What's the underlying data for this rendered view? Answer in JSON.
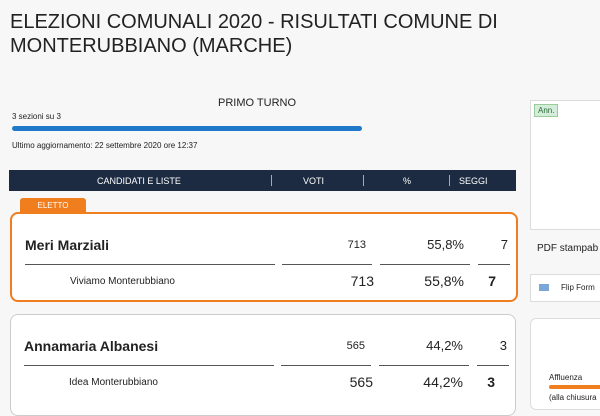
{
  "header": {
    "title": "ELEZIONI COMUNALI 2020 - RISULTATI COMUNE DI MONTERUBBIANO (MARCHE)"
  },
  "round": {
    "title": "PRIMO TURNO",
    "sections": "3 sezioni su 3",
    "updated": "Ultimo aggiornamento: 22 settembre 2020 ore 12:37"
  },
  "table": {
    "columns": [
      "CANDIDATI E LISTE",
      "VOTI",
      "%",
      "SEGGI"
    ],
    "elected_tag": "ELETTO",
    "candidates": [
      {
        "name": "Meri Marziali",
        "votes": 713,
        "percent": "55,8%",
        "seats": 7,
        "list": {
          "name": "Viviamo Monterubbiano",
          "votes": 713,
          "percent": "55,8%",
          "seats": 7
        }
      },
      {
        "name": "Annamaria Albanesi",
        "votes": 565,
        "percent": "44,2%",
        "seats": 3,
        "list": {
          "name": "Idea Monterubbiano",
          "votes": 565,
          "percent": "44,2%",
          "seats": 3
        }
      }
    ]
  },
  "sidebar": {
    "tag": "Ann.",
    "pdf": "PDF stampab",
    "flip": "Flip Form",
    "turnout": "Affluenza",
    "turnout_note": "(alla chiusura"
  }
}
